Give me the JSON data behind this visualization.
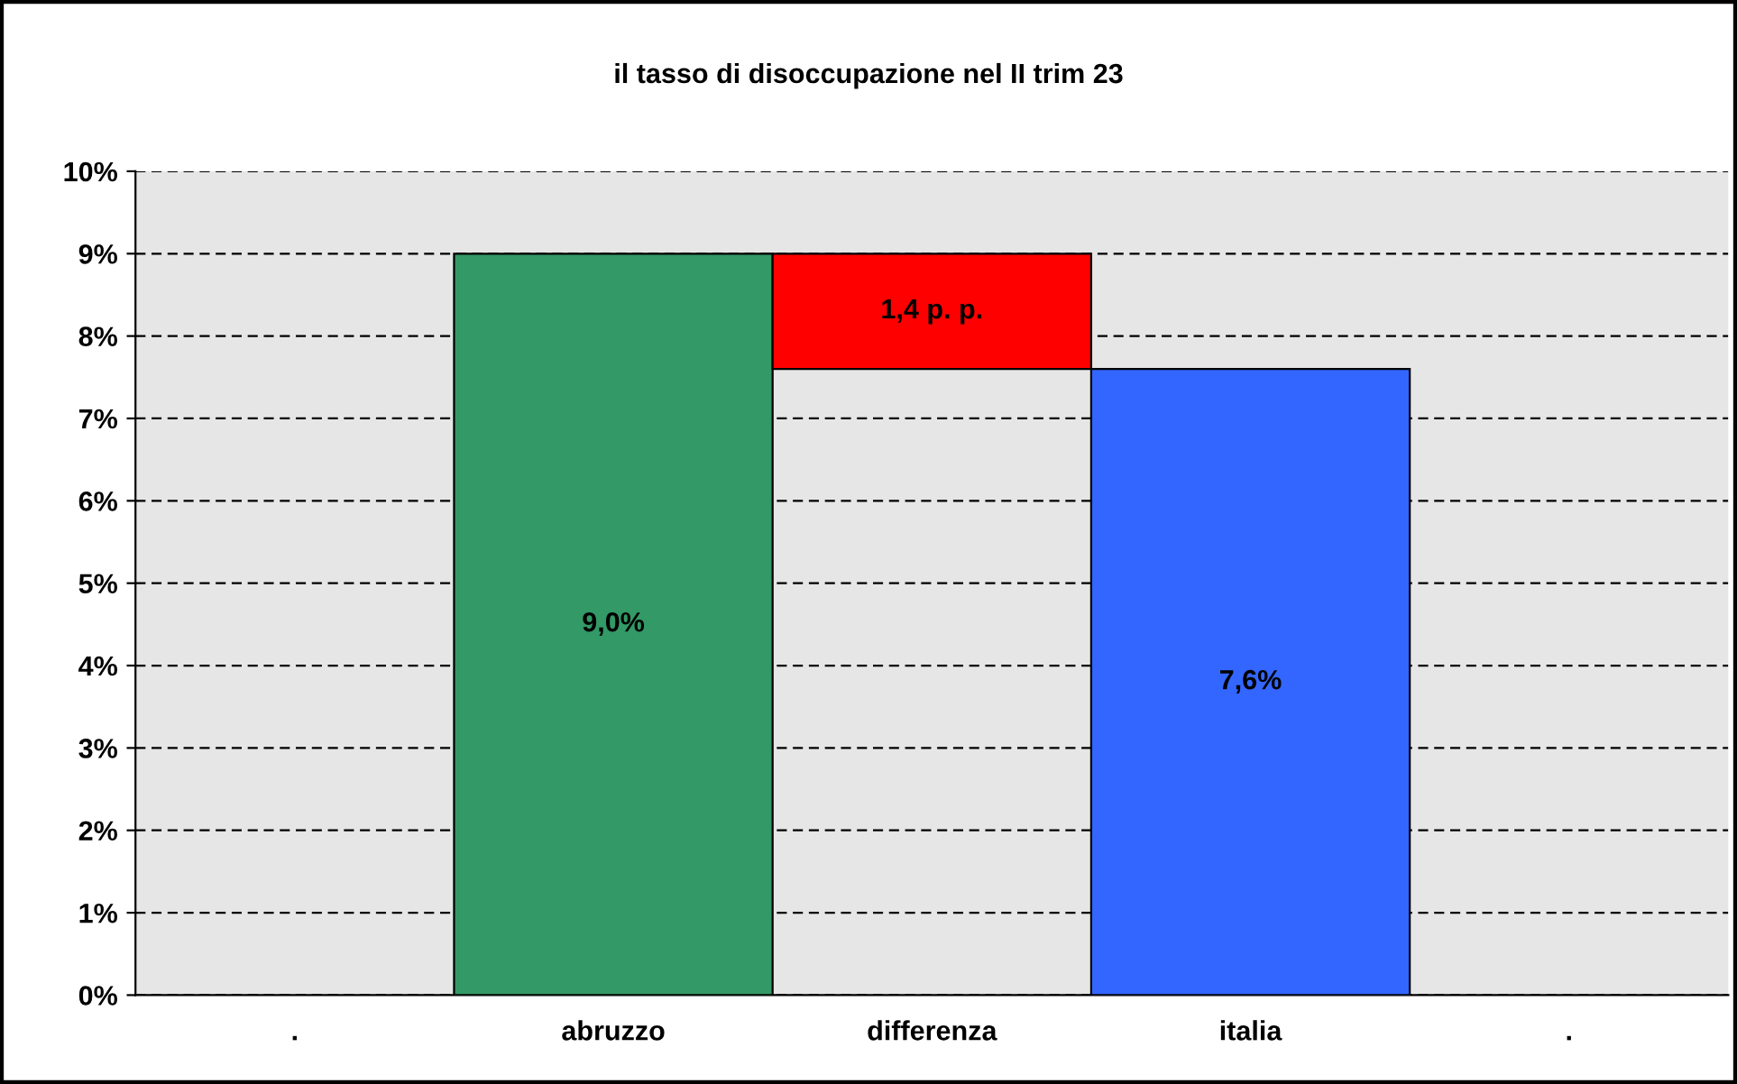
{
  "chart_data": {
    "type": "bar",
    "title": "il tasso di disoccupazione nel II trim 23",
    "categories": [
      ".",
      "abruzzo",
      "differenza",
      "italia",
      "."
    ],
    "values": [
      null,
      9.0,
      1.4,
      7.6,
      null
    ],
    "base": [
      null,
      0,
      7.6,
      0,
      null
    ],
    "colors": [
      "#ffffff",
      "#339966",
      "#ff0000",
      "#3366ff",
      "#ffffff"
    ],
    "value_labels": [
      null,
      "9,0%",
      "1,4 p. p.",
      "7,6%",
      null
    ],
    "ylim": [
      0,
      10
    ],
    "yticks": [
      {
        "value": 0,
        "label": "0%"
      },
      {
        "value": 1,
        "label": "1%"
      },
      {
        "value": 2,
        "label": "2%"
      },
      {
        "value": 3,
        "label": "3%"
      },
      {
        "value": 4,
        "label": "4%"
      },
      {
        "value": 5,
        "label": "5%"
      },
      {
        "value": 6,
        "label": "6%"
      },
      {
        "value": 7,
        "label": "7%"
      },
      {
        "value": 8,
        "label": "8%"
      },
      {
        "value": 9,
        "label": "9%"
      },
      {
        "value": 10,
        "label": "10%"
      }
    ],
    "grid": "y",
    "line_style": "dashed"
  }
}
